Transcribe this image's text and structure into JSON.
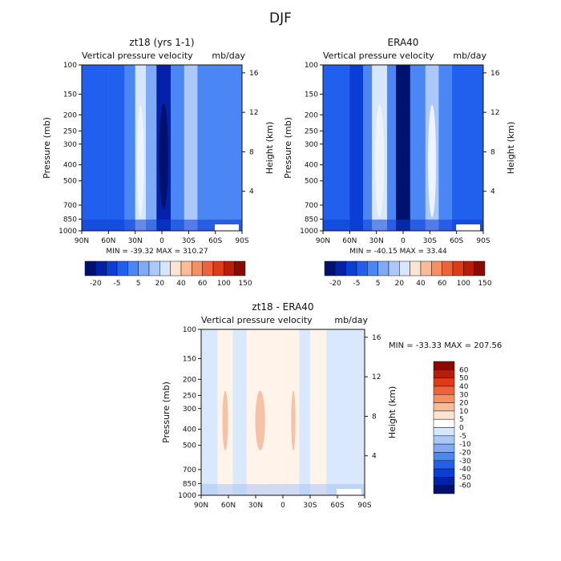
{
  "figure": {
    "title": "DJF"
  },
  "colors": {
    "blues": [
      "#00126e",
      "#0322a8",
      "#0b3ed6",
      "#2160ee",
      "#4a86f4",
      "#7eaaf6",
      "#abc8fa",
      "#d6e6fc"
    ],
    "reds": [
      "#fde4d2",
      "#f9bb98",
      "#f59062",
      "#f0623a",
      "#dd3c17",
      "#bb1c08",
      "#8a0a03"
    ]
  },
  "chart_data": [
    {
      "id": "model",
      "type": "heatmap",
      "title": "zt18 (yrs 1-1)",
      "variable": "Vertical pressure velocity",
      "units": "mb/day",
      "ylabel": "Pressure (mb)",
      "y2label": "Height (km)",
      "x_ticks": [
        "90N",
        "60N",
        "30N",
        "0",
        "30S",
        "60S",
        "90S"
      ],
      "y_ticks": [
        100,
        150,
        200,
        250,
        300,
        400,
        500,
        700,
        850,
        1000
      ],
      "y2_ticks": [
        16,
        12,
        8,
        4
      ],
      "stats": "MIN = -39.32   MAX = 310.27",
      "min": -39.32,
      "max": 310.27,
      "colorbar_labels": [
        "-20",
        "-5",
        "5",
        "20",
        "40",
        "60",
        "100",
        "150"
      ],
      "colorbar_orientation": "horizontal",
      "bands": [
        {
          "lat": [
            90,
            60
          ],
          "value": -12
        },
        {
          "lat": [
            60,
            42
          ],
          "value": -14
        },
        {
          "lat": [
            42,
            30
          ],
          "value": -8
        },
        {
          "lat": [
            30,
            18
          ],
          "value": 15
        },
        {
          "lat": [
            18,
            6
          ],
          "value": -3
        },
        {
          "lat": [
            6,
            -10
          ],
          "value": -25
        },
        {
          "lat": [
            -10,
            -25
          ],
          "value": -5
        },
        {
          "lat": [
            -25,
            -40
          ],
          "value": 5
        },
        {
          "lat": [
            -40,
            -52
          ],
          "value": -8
        },
        {
          "lat": [
            -52,
            -90
          ],
          "value": -10
        }
      ]
    },
    {
      "id": "obs",
      "type": "heatmap",
      "title": "ERA40",
      "variable": "Vertical pressure velocity",
      "units": "mb/day",
      "ylabel": "Pressure (mb)",
      "y2label": "Height (km)",
      "x_ticks": [
        "90N",
        "60N",
        "30N",
        "0",
        "30S",
        "60S",
        "90S"
      ],
      "y_ticks": [
        100,
        150,
        200,
        250,
        300,
        400,
        500,
        700,
        850,
        1000
      ],
      "y2_ticks": [
        16,
        12,
        8,
        4
      ],
      "stats": "MIN = -40.15   MAX =   33.44",
      "min": -40.15,
      "max": 33.44,
      "colorbar_labels": [
        "-20",
        "-5",
        "5",
        "20",
        "40",
        "60",
        "100",
        "150"
      ],
      "colorbar_orientation": "horizontal",
      "bands": [
        {
          "lat": [
            90,
            60
          ],
          "value": -12
        },
        {
          "lat": [
            60,
            45
          ],
          "value": -20
        },
        {
          "lat": [
            45,
            35
          ],
          "value": -5
        },
        {
          "lat": [
            35,
            18
          ],
          "value": 12
        },
        {
          "lat": [
            18,
            8
          ],
          "value": -5
        },
        {
          "lat": [
            8,
            -8
          ],
          "value": -30
        },
        {
          "lat": [
            -8,
            -25
          ],
          "value": -8
        },
        {
          "lat": [
            -25,
            -40
          ],
          "value": 8
        },
        {
          "lat": [
            -40,
            -55
          ],
          "value": -10
        },
        {
          "lat": [
            -55,
            -90
          ],
          "value": -12
        }
      ]
    },
    {
      "id": "diff",
      "type": "heatmap",
      "title": "zt18 - ERA40",
      "variable": "Vertical pressure velocity",
      "units": "mb/day",
      "ylabel": "Pressure (mb)",
      "y2label": "Height (km)",
      "x_ticks": [
        "90N",
        "60N",
        "30N",
        "0",
        "30S",
        "60S",
        "90S"
      ],
      "y_ticks": [
        100,
        150,
        200,
        250,
        300,
        400,
        500,
        700,
        850,
        1000
      ],
      "y2_ticks": [
        16,
        12,
        8,
        4
      ],
      "stats": "MIN = -33.33   MAX = 207.56",
      "min": -33.33,
      "max": 207.56,
      "colorbar_labels": [
        "60",
        "50",
        "40",
        "30",
        "20",
        "10",
        "5",
        "0",
        "-5",
        "-10",
        "-20",
        "-30",
        "-40",
        "-50",
        "-60"
      ],
      "colorbar_orientation": "vertical",
      "bands": [
        {
          "lat": [
            90,
            72
          ],
          "value": -2
        },
        {
          "lat": [
            72,
            55
          ],
          "value": 3
        },
        {
          "lat": [
            55,
            40
          ],
          "value": -2
        },
        {
          "lat": [
            40,
            10
          ],
          "value": 3
        },
        {
          "lat": [
            10,
            -5
          ],
          "value": 2
        },
        {
          "lat": [
            -5,
            -18
          ],
          "value": 4
        },
        {
          "lat": [
            -18,
            -30
          ],
          "value": -2
        },
        {
          "lat": [
            -30,
            -48
          ],
          "value": 2
        },
        {
          "lat": [
            -48,
            -62
          ],
          "value": -3
        },
        {
          "lat": [
            -62,
            -90
          ],
          "value": -2
        }
      ]
    }
  ]
}
